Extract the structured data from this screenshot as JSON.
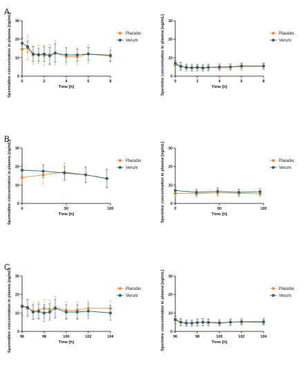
{
  "panel_letters": [
    "A",
    "B",
    "C"
  ],
  "chart_data": [
    {
      "panel": "A",
      "type": "line",
      "xlabel": "Time [h]",
      "ylabel": "Spermidine concentration in plasma [ng/mL]",
      "xlim": [
        0,
        8
      ],
      "ylim": [
        0,
        30
      ],
      "xticks": [
        0,
        2,
        4,
        6,
        8
      ],
      "yticks": [
        0,
        10,
        20,
        30
      ],
      "legend": "right",
      "series": [
        {
          "name": "Placebo",
          "color": "#ef8a3c",
          "x": [
            0,
            0.5,
            1,
            1.5,
            2,
            2.5,
            3,
            4,
            5,
            6,
            8
          ],
          "y": [
            14.5,
            15.2,
            11.5,
            11.8,
            11.2,
            11.5,
            12.5,
            10.5,
            10.5,
            12.0,
            11.5
          ],
          "err": [
            6.0,
            6.5,
            5.0,
            5.0,
            5.5,
            5.5,
            6.5,
            4.5,
            4.0,
            5.0,
            4.0
          ]
        },
        {
          "name": "Verum",
          "color": "#2a5f6d",
          "x": [
            0,
            0.5,
            1,
            1.5,
            2,
            2.5,
            3,
            4,
            5,
            6,
            8
          ],
          "y": [
            17.8,
            16.0,
            12.0,
            11.5,
            12.0,
            11.0,
            12.5,
            11.5,
            11.5,
            12.0,
            11.0
          ],
          "err": [
            3.0,
            3.0,
            4.0,
            3.5,
            4.0,
            4.5,
            5.0,
            4.0,
            3.5,
            3.5,
            3.0
          ]
        }
      ]
    },
    {
      "panel": "A",
      "type": "line",
      "xlabel": "Time [h]",
      "ylabel": "Spermine concentration in plasma [ng/mL]",
      "xlim": [
        0,
        8
      ],
      "ylim": [
        0,
        30
      ],
      "xticks": [
        0,
        2,
        4,
        6,
        8
      ],
      "yticks": [
        0,
        10,
        20,
        30
      ],
      "legend": "right",
      "series": [
        {
          "name": "Placebo",
          "color": "#ef8a3c",
          "x": [
            0,
            0.5,
            1,
            1.5,
            2,
            2.5,
            3,
            4,
            5,
            6,
            8
          ],
          "y": [
            6.0,
            5.5,
            4.5,
            4.5,
            4.5,
            4.3,
            4.8,
            4.5,
            4.8,
            5.2,
            5.3
          ],
          "err": [
            2.0,
            2.0,
            2.0,
            2.0,
            2.0,
            2.0,
            2.0,
            1.8,
            1.8,
            2.0,
            1.8
          ]
        },
        {
          "name": "Verum",
          "color": "#2a5f6d",
          "x": [
            0,
            0.5,
            1,
            1.5,
            2,
            2.5,
            3,
            4,
            5,
            6,
            8
          ],
          "y": [
            7.0,
            5.2,
            4.8,
            4.5,
            4.8,
            4.5,
            4.7,
            5.0,
            5.0,
            5.5,
            5.5
          ],
          "err": [
            1.5,
            2.0,
            1.5,
            1.5,
            1.5,
            1.5,
            1.5,
            1.5,
            1.5,
            1.5,
            1.5
          ]
        }
      ]
    },
    {
      "panel": "B",
      "type": "line",
      "xlabel": "Time [h]",
      "ylabel": "Spermidine concentration in plasma [ng/mL]",
      "xlim": [
        0,
        100
      ],
      "ylim": [
        0,
        30
      ],
      "xticks": [
        0,
        50,
        100
      ],
      "yticks": [
        0,
        10,
        20,
        30
      ],
      "legend": "right",
      "series": [
        {
          "name": "Placebo",
          "color": "#ef8a3c",
          "x": [
            0,
            24,
            48,
            72,
            96
          ],
          "y": [
            14.0,
            15.5,
            17.0,
            15.5,
            13.5
          ],
          "err": [
            5.0,
            5.0,
            5.0,
            4.5,
            5.0
          ]
        },
        {
          "name": "Verum",
          "color": "#2a5f6d",
          "x": [
            0,
            24,
            48,
            72,
            96
          ],
          "y": [
            18.0,
            17.5,
            16.5,
            15.5,
            13.5
          ],
          "err": [
            3.0,
            3.5,
            3.5,
            4.0,
            5.0
          ]
        }
      ]
    },
    {
      "panel": "B",
      "type": "line",
      "xlabel": "Time [h]",
      "ylabel": "Spermine concentration in plasma [ng/mL]",
      "xlim": [
        0,
        100
      ],
      "ylim": [
        0,
        30
      ],
      "xticks": [
        0,
        50,
        100
      ],
      "yticks": [
        0,
        10,
        20,
        30
      ],
      "legend": "right",
      "series": [
        {
          "name": "Placebo",
          "color": "#ef8a3c",
          "x": [
            0,
            24,
            48,
            72,
            96
          ],
          "y": [
            5.5,
            5.3,
            5.8,
            5.5,
            5.2
          ],
          "err": [
            1.8,
            1.8,
            2.0,
            1.8,
            1.8
          ]
        },
        {
          "name": "Verum",
          "color": "#2a5f6d",
          "x": [
            0,
            24,
            48,
            72,
            96
          ],
          "y": [
            7.0,
            6.0,
            6.5,
            6.0,
            6.3
          ],
          "err": [
            2.0,
            1.8,
            2.0,
            1.8,
            1.8
          ]
        }
      ]
    },
    {
      "panel": "C",
      "type": "line",
      "xlabel": "Time [h]",
      "ylabel": "Spermidine concentration in plasma [ng/mL]",
      "xlim": [
        96,
        104
      ],
      "ylim": [
        0,
        30
      ],
      "xticks": [
        96,
        98,
        100,
        102,
        104
      ],
      "yticks": [
        0,
        10,
        20,
        30
      ],
      "legend": "right",
      "series": [
        {
          "name": "Placebo",
          "color": "#ef8a3c",
          "x": [
            96,
            96.5,
            97,
            97.5,
            98,
            98.5,
            99,
            100,
            101,
            102,
            104
          ],
          "y": [
            14.0,
            12.5,
            11.0,
            11.5,
            12.5,
            12.0,
            13.0,
            11.5,
            11.5,
            12.5,
            12.5
          ],
          "err": [
            5.0,
            5.0,
            4.5,
            4.5,
            5.0,
            5.0,
            6.0,
            4.5,
            4.5,
            4.0,
            4.0
          ]
        },
        {
          "name": "Verum",
          "color": "#2a5f6d",
          "x": [
            96,
            96.5,
            97,
            97.5,
            98,
            98.5,
            99,
            100,
            101,
            102,
            104
          ],
          "y": [
            13.5,
            13.0,
            10.5,
            10.8,
            10.0,
            10.5,
            12.5,
            10.5,
            10.5,
            11.0,
            10.0
          ],
          "err": [
            4.5,
            4.5,
            4.0,
            4.0,
            4.5,
            4.5,
            5.0,
            4.0,
            4.0,
            4.0,
            4.0
          ]
        }
      ]
    },
    {
      "panel": "C",
      "type": "line",
      "xlabel": "Time [h]",
      "ylabel": "Spermine concentration in plasma [ng/mL]",
      "xlim": [
        96,
        104
      ],
      "ylim": [
        0,
        30
      ],
      "xticks": [
        96,
        98,
        100,
        102,
        104
      ],
      "yticks": [
        0,
        10,
        20,
        30
      ],
      "legend": "right",
      "series": [
        {
          "name": "Placebo",
          "color": "#ef8a3c",
          "x": [
            96,
            96.5,
            97,
            97.5,
            98,
            98.5,
            99,
            100,
            101,
            102,
            104
          ],
          "y": [
            6.0,
            5.0,
            4.5,
            4.5,
            4.8,
            5.0,
            5.0,
            4.8,
            5.0,
            5.3,
            5.5
          ],
          "err": [
            2.0,
            2.0,
            1.8,
            1.8,
            2.0,
            2.0,
            2.0,
            1.8,
            1.8,
            1.8,
            1.8
          ]
        },
        {
          "name": "Verum",
          "color": "#2a5f6d",
          "x": [
            96,
            96.5,
            97,
            97.5,
            98,
            98.5,
            99,
            100,
            101,
            102,
            104
          ],
          "y": [
            6.5,
            5.0,
            4.5,
            4.5,
            4.8,
            5.0,
            4.8,
            4.5,
            5.0,
            5.2,
            5.0
          ],
          "err": [
            2.0,
            1.8,
            1.5,
            1.5,
            1.8,
            1.8,
            1.8,
            1.5,
            1.5,
            1.5,
            1.5
          ]
        }
      ]
    }
  ]
}
